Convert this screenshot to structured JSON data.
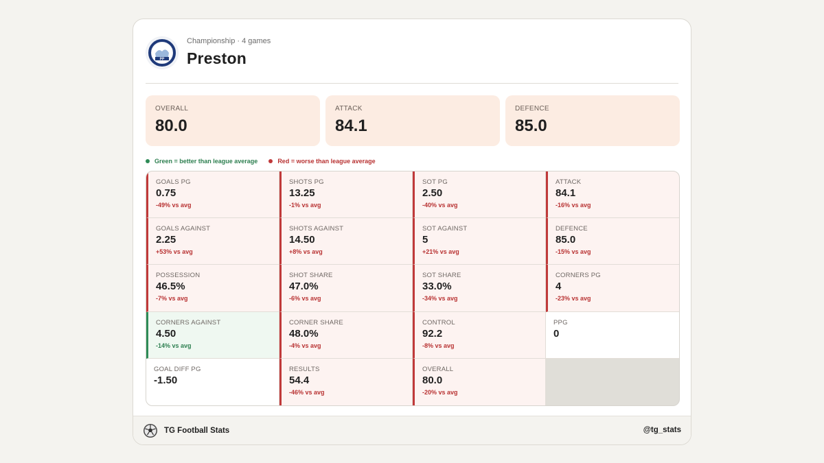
{
  "header": {
    "subtitle": "Championship · 4 games",
    "team_name": "Preston",
    "crest_initials": "PP"
  },
  "summary": [
    {
      "label": "OVERALL",
      "value": "80.0"
    },
    {
      "label": "ATTACK",
      "value": "84.1"
    },
    {
      "label": "DEFENCE",
      "value": "85.0"
    }
  ],
  "legend": {
    "green": "Green = better than league average",
    "red": "Red = worse than league average",
    "colors": {
      "green": "#2e8b57",
      "red": "#c0393a"
    }
  },
  "stats": [
    {
      "label": "GOALS PG",
      "value": "0.75",
      "delta": "-49% vs avg",
      "status": "worse"
    },
    {
      "label": "SHOTS PG",
      "value": "13.25",
      "delta": "-1% vs avg",
      "status": "worse"
    },
    {
      "label": "SOT PG",
      "value": "2.50",
      "delta": "-40% vs avg",
      "status": "worse"
    },
    {
      "label": "ATTACK",
      "value": "84.1",
      "delta": "-16% vs avg",
      "status": "worse"
    },
    {
      "label": "GOALS AGAINST",
      "value": "2.25",
      "delta": "+53% vs avg",
      "status": "worse"
    },
    {
      "label": "SHOTS AGAINST",
      "value": "14.50",
      "delta": "+8% vs avg",
      "status": "worse"
    },
    {
      "label": "SOT AGAINST",
      "value": "5",
      "delta": "+21% vs avg",
      "status": "worse"
    },
    {
      "label": "DEFENCE",
      "value": "85.0",
      "delta": "-15% vs avg",
      "status": "worse"
    },
    {
      "label": "POSSESSION",
      "value": "46.5%",
      "delta": "-7% vs avg",
      "status": "worse"
    },
    {
      "label": "SHOT SHARE",
      "value": "47.0%",
      "delta": "-6% vs avg",
      "status": "worse"
    },
    {
      "label": "SOT SHARE",
      "value": "33.0%",
      "delta": "-34% vs avg",
      "status": "worse"
    },
    {
      "label": "CORNERS PG",
      "value": "4",
      "delta": "-23% vs avg",
      "status": "worse"
    },
    {
      "label": "CORNERS AGAINST",
      "value": "4.50",
      "delta": "-14% vs avg",
      "status": "better"
    },
    {
      "label": "CORNER SHARE",
      "value": "48.0%",
      "delta": "-4% vs avg",
      "status": "worse"
    },
    {
      "label": "CONTROL",
      "value": "92.2",
      "delta": "-8% vs avg",
      "status": "worse"
    },
    {
      "label": "PPG",
      "value": "0",
      "delta": "",
      "status": "neutral"
    },
    {
      "label": "GOAL DIFF PG",
      "value": "-1.50",
      "delta": "",
      "status": "neutral"
    },
    {
      "label": "RESULTS",
      "value": "54.4",
      "delta": "-46% vs avg",
      "status": "worse"
    },
    {
      "label": "OVERALL",
      "value": "80.0",
      "delta": "-20% vs avg",
      "status": "worse"
    },
    {
      "label": "",
      "value": "",
      "delta": "",
      "status": "empty"
    }
  ],
  "footer": {
    "brand": "TG Football Stats",
    "handle": "@tg_stats"
  }
}
